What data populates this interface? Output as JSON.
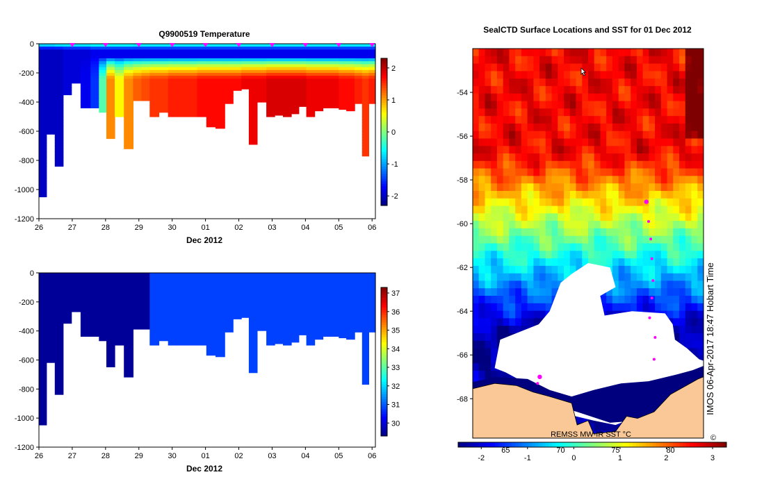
{
  "colors": {
    "jet": [
      "#00007f",
      "#0000ff",
      "#007fff",
      "#00ffff",
      "#7fff7f",
      "#ffff00",
      "#ff7f00",
      "#ff0000",
      "#7f0000"
    ],
    "ice": "#ffffff",
    "land": "#f9c896",
    "marker": "#ff00ff"
  },
  "chart_data": [
    {
      "type": "heatmap",
      "title": "Q9900519  Temperature",
      "xlabel": "Dec 2012",
      "ylabel": "",
      "x_tick_labels": [
        "26",
        "27",
        "28",
        "29",
        "30",
        "01",
        "02",
        "03",
        "04",
        "05",
        "06"
      ],
      "xlim": [
        26,
        36.1
      ],
      "y_ticks": [
        0,
        -200,
        -400,
        -600,
        -800,
        -1000,
        -1200
      ],
      "ylim": [
        -1200,
        0
      ],
      "colorbar": {
        "range": [
          -2.3,
          2.3
        ],
        "ticks": [
          2,
          1,
          0,
          -1,
          -2
        ]
      },
      "grid": false,
      "legend": "none",
      "profiles": [
        {
          "t": 26.1,
          "depth": 1050,
          "surface": -0.4,
          "min": -2.0,
          "deep": -2.0
        },
        {
          "t": 26.35,
          "depth": 620,
          "surface": -0.4,
          "min": -2.0,
          "deep": -2.0
        },
        {
          "t": 26.6,
          "depth": 840,
          "surface": -0.3,
          "min": -2.0,
          "deep": -2.0
        },
        {
          "t": 26.85,
          "depth": 350,
          "surface": -0.3,
          "min": -1.9,
          "deep": -1.9
        },
        {
          "t": 27.1,
          "depth": 270,
          "surface": -0.3,
          "min": -1.9,
          "deep": -1.9
        },
        {
          "t": 27.4,
          "depth": 440,
          "surface": -0.3,
          "min": -1.9,
          "deep": -1.8
        },
        {
          "t": 27.7,
          "depth": 440,
          "surface": -0.2,
          "min": -1.8,
          "deep": -1.5
        },
        {
          "t": 27.9,
          "depth": 470,
          "surface": -0.2,
          "min": -1.8,
          "deep": -0.2
        },
        {
          "t": 28.15,
          "depth": 650,
          "surface": -0.2,
          "min": -1.8,
          "deep": 1.1
        },
        {
          "t": 28.4,
          "depth": 500,
          "surface": -0.2,
          "min": -1.8,
          "deep": 0.6
        },
        {
          "t": 28.7,
          "depth": 720,
          "surface": -0.2,
          "min": -1.8,
          "deep": 1.1
        },
        {
          "t": 28.95,
          "depth": 390,
          "surface": -0.3,
          "min": -1.8,
          "deep": 1.3
        },
        {
          "t": 29.2,
          "depth": 390,
          "surface": -0.3,
          "min": -1.8,
          "deep": 1.4
        },
        {
          "t": 29.45,
          "depth": 500,
          "surface": -0.3,
          "min": -1.8,
          "deep": 1.5
        },
        {
          "t": 29.75,
          "depth": 470,
          "surface": -0.3,
          "min": -1.8,
          "deep": 1.5
        },
        {
          "t": 30.0,
          "depth": 500,
          "surface": -0.3,
          "min": -1.8,
          "deep": 1.6
        },
        {
          "t": 30.3,
          "depth": 500,
          "surface": -0.3,
          "min": -1.8,
          "deep": 1.6
        },
        {
          "t": 30.6,
          "depth": 500,
          "surface": -0.3,
          "min": -1.8,
          "deep": 1.6
        },
        {
          "t": 30.9,
          "depth": 500,
          "surface": -0.3,
          "min": -1.8,
          "deep": 1.7
        },
        {
          "t": 31.15,
          "depth": 570,
          "surface": -0.3,
          "min": -1.8,
          "deep": 1.7
        },
        {
          "t": 31.45,
          "depth": 580,
          "surface": -0.3,
          "min": -1.8,
          "deep": 1.7
        },
        {
          "t": 31.7,
          "depth": 410,
          "surface": -0.3,
          "min": -1.8,
          "deep": 1.7
        },
        {
          "t": 31.95,
          "depth": 320,
          "surface": -0.3,
          "min": -1.8,
          "deep": 1.7
        },
        {
          "t": 32.2,
          "depth": 310,
          "surface": -0.3,
          "min": -1.8,
          "deep": 1.8
        },
        {
          "t": 32.4,
          "depth": 690,
          "surface": -0.3,
          "min": -1.8,
          "deep": 1.8
        },
        {
          "t": 32.7,
          "depth": 400,
          "surface": -0.3,
          "min": -1.8,
          "deep": 1.8
        },
        {
          "t": 32.95,
          "depth": 500,
          "surface": -0.3,
          "min": -1.8,
          "deep": 1.9
        },
        {
          "t": 33.2,
          "depth": 490,
          "surface": -0.3,
          "min": -1.8,
          "deep": 1.9
        },
        {
          "t": 33.45,
          "depth": 500,
          "surface": -0.3,
          "min": -1.8,
          "deep": 1.9
        },
        {
          "t": 33.7,
          "depth": 480,
          "surface": -0.3,
          "min": -1.8,
          "deep": 1.9
        },
        {
          "t": 33.9,
          "depth": 430,
          "surface": -0.3,
          "min": -1.8,
          "deep": 1.9
        },
        {
          "t": 34.15,
          "depth": 500,
          "surface": -0.3,
          "min": -1.8,
          "deep": 1.8
        },
        {
          "t": 34.4,
          "depth": 460,
          "surface": -0.3,
          "min": -1.8,
          "deep": 1.8
        },
        {
          "t": 34.65,
          "depth": 440,
          "surface": -0.3,
          "min": -1.8,
          "deep": 1.8
        },
        {
          "t": 34.9,
          "depth": 440,
          "surface": -0.3,
          "min": -1.8,
          "deep": 1.8
        },
        {
          "t": 35.1,
          "depth": 450,
          "surface": -0.3,
          "min": -1.8,
          "deep": 1.7
        },
        {
          "t": 35.35,
          "depth": 460,
          "surface": -0.3,
          "min": -1.8,
          "deep": 1.7
        },
        {
          "t": 35.6,
          "depth": 410,
          "surface": -0.3,
          "min": -1.8,
          "deep": 1.6
        },
        {
          "t": 35.8,
          "depth": 770,
          "surface": -0.3,
          "min": -1.8,
          "deep": 1.5
        },
        {
          "t": 36.0,
          "depth": 410,
          "surface": -0.3,
          "min": -1.8,
          "deep": 1.6
        }
      ],
      "markers_x": [
        27.0,
        28.0,
        29.0,
        30.0,
        31.0,
        32.0,
        33.0,
        34.0,
        35.0,
        36.0
      ]
    },
    {
      "type": "heatmap",
      "title": "",
      "xlabel": "Dec 2012",
      "ylabel": "",
      "x_tick_labels": [
        "26",
        "27",
        "28",
        "29",
        "30",
        "01",
        "02",
        "03",
        "04",
        "05",
        "06"
      ],
      "xlim": [
        26,
        36.1
      ],
      "y_ticks": [
        0,
        -200,
        -400,
        -600,
        -800,
        -1000,
        -1200
      ],
      "ylim": [
        -1200,
        0
      ],
      "colorbar": {
        "range": [
          29.3,
          37.3
        ],
        "ticks": [
          37,
          36,
          35,
          34,
          33,
          32,
          31,
          30
        ]
      },
      "grid": false,
      "legend": "none",
      "value_before_change": 29.5,
      "value_after_change": 30.8,
      "change_at": 29.25
    },
    {
      "type": "heatmap",
      "title": "SealCTD Surface Locations and SST for 01 Dec 2012",
      "xlabel": "",
      "ylabel": "",
      "y_tick_labels": [
        "-54",
        "-56",
        "-58",
        "-60",
        "-62",
        "-64",
        "-66",
        "-68"
      ],
      "ylim": [
        -69.8,
        -52.0
      ],
      "x_tick_labels": [
        "65",
        "70",
        "75",
        "80"
      ],
      "x_tick_values": [
        65,
        70,
        75,
        80
      ],
      "xlim": [
        62.0,
        83.0
      ],
      "colorbar": {
        "range": [
          -2.5,
          3.3
        ],
        "ticks": [
          "-2",
          "-1",
          "0",
          "1",
          "2",
          "3"
        ],
        "tick_values": [
          -2,
          -1,
          0,
          1,
          2,
          3
        ],
        "label": "REMSS MW-IR SST °C"
      },
      "grid": false,
      "legend": "none",
      "profile_locations": [
        {
          "lon": 77.8,
          "lat": -59.0
        },
        {
          "lon": 78.0,
          "lat": -59.9
        },
        {
          "lon": 78.2,
          "lat": -60.7
        },
        {
          "lon": 78.3,
          "lat": -61.6
        },
        {
          "lon": 78.4,
          "lat": -62.6
        },
        {
          "lon": 78.3,
          "lat": -63.4
        },
        {
          "lon": 78.1,
          "lat": -64.3
        },
        {
          "lon": 78.6,
          "lat": -65.2
        },
        {
          "lon": 78.5,
          "lat": -66.2
        },
        {
          "lon": 68.1,
          "lat": -67.0
        },
        {
          "lon": 67.9,
          "lat": -67.3
        }
      ]
    }
  ],
  "footer": {
    "timestamp": "IMOS 06-Apr-2017 18:47 Hobart Time",
    "copyright": "©"
  }
}
